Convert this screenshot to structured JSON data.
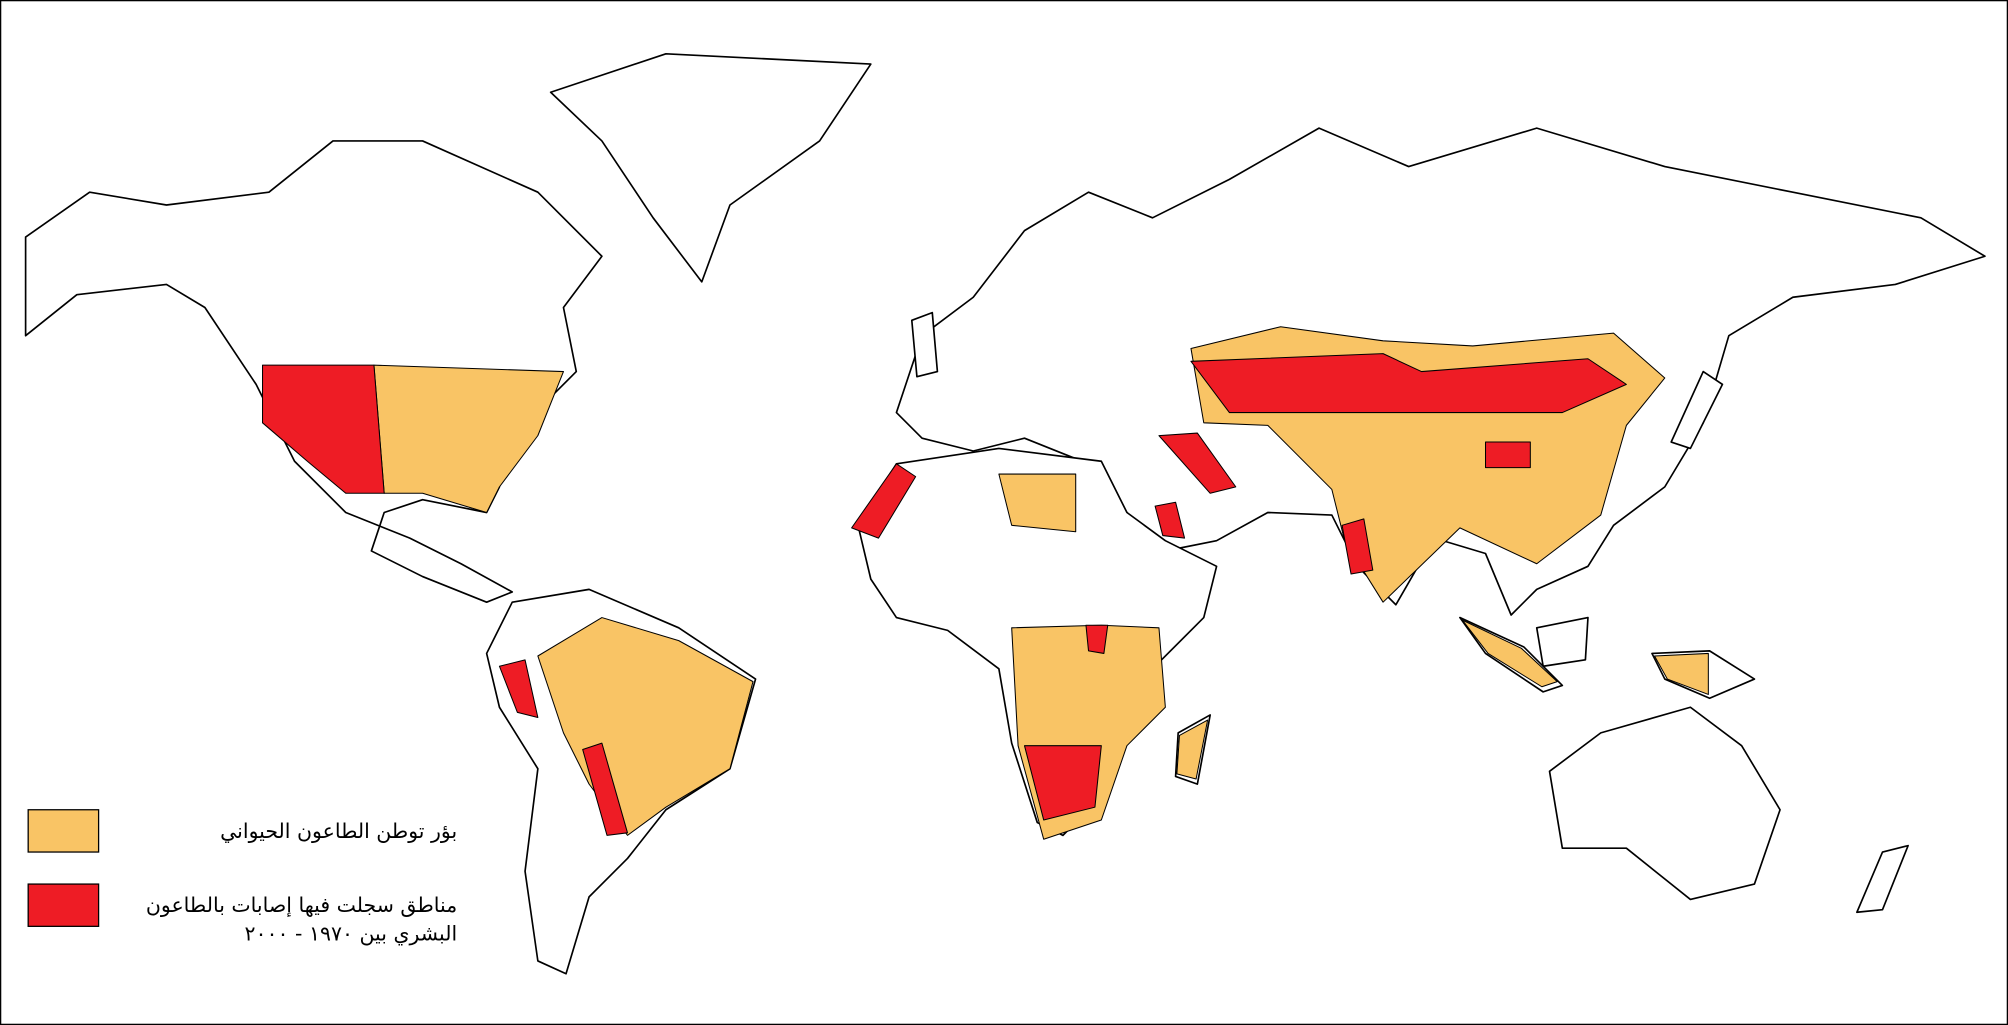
{
  "legend": {
    "items": [
      {
        "color": "#f9c465",
        "lines": [
          "بؤر توطن الطاعون الحيواني"
        ]
      },
      {
        "color": "#ee1c25",
        "lines": [
          "مناطق سجلت فيها إصابات بالطاعون",
          "البشري بين ١٩٧٠ - ٢٠٠٠"
        ]
      }
    ]
  }
}
